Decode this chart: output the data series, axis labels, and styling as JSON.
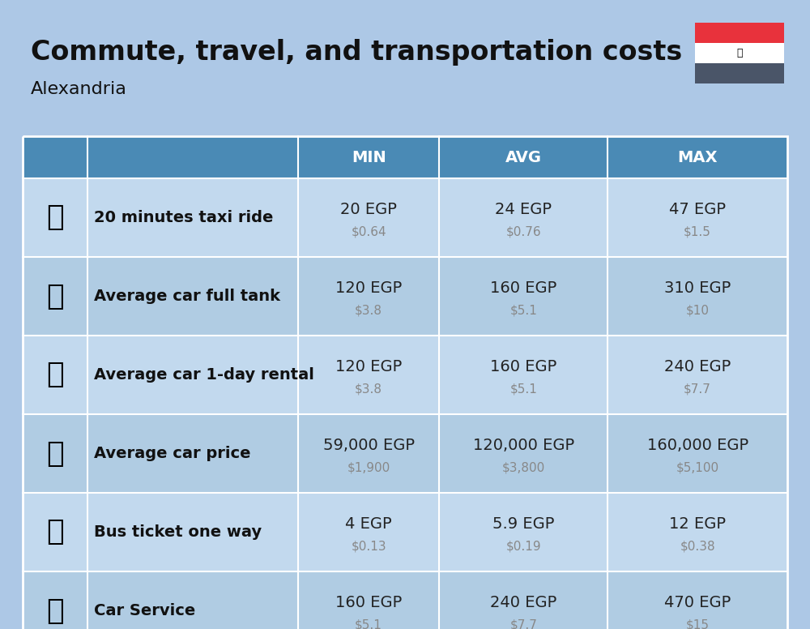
{
  "title": "Commute, travel, and transportation costs",
  "subtitle": "Alexandria",
  "bg_color": "#adc8e6",
  "header_bg": "#4a8ab5",
  "header_text": "#ffffff",
  "cell_text": "#222222",
  "cell_sub": "#888888",
  "label_bold": "#111111",
  "row_colors": [
    "#c2d9ee",
    "#b0cce3"
  ],
  "sep_color": "#ffffff",
  "flag_red": "#e8323c",
  "flag_white": "#ffffff",
  "flag_dark": "#4a5568",
  "title_fontsize": 24,
  "subtitle_fontsize": 16,
  "header_fontsize": 14,
  "label_fontsize": 14,
  "cell_fontsize": 14,
  "cell_sub_fontsize": 11,
  "rows": [
    {
      "label": "20 minutes taxi ride",
      "min_egp": "20 EGP",
      "min_usd": "$0.64",
      "avg_egp": "24 EGP",
      "avg_usd": "$0.76",
      "max_egp": "47 EGP",
      "max_usd": "$1.5",
      "emoji": "🚕"
    },
    {
      "label": "Average car full tank",
      "min_egp": "120 EGP",
      "min_usd": "$3.8",
      "avg_egp": "160 EGP",
      "avg_usd": "$5.1",
      "max_egp": "310 EGP",
      "max_usd": "$10",
      "emoji": "⛽"
    },
    {
      "label": "Average car 1-day rental",
      "min_egp": "120 EGP",
      "min_usd": "$3.8",
      "avg_egp": "160 EGP",
      "avg_usd": "$5.1",
      "max_egp": "240 EGP",
      "max_usd": "$7.7",
      "emoji": "🚙"
    },
    {
      "label": "Average car price",
      "min_egp": "59,000 EGP",
      "min_usd": "$1,900",
      "avg_egp": "120,000 EGP",
      "avg_usd": "$3,800",
      "max_egp": "160,000 EGP",
      "max_usd": "$5,100",
      "emoji": "🚗"
    },
    {
      "label": "Bus ticket one way",
      "min_egp": "4 EGP",
      "min_usd": "$0.13",
      "avg_egp": "5.9 EGP",
      "avg_usd": "$0.19",
      "max_egp": "12 EGP",
      "max_usd": "$0.38",
      "emoji": "🚌"
    },
    {
      "label": "Car Service",
      "min_egp": "160 EGP",
      "min_usd": "$5.1",
      "avg_egp": "240 EGP",
      "avg_usd": "$7.7",
      "max_egp": "470 EGP",
      "max_usd": "$15",
      "emoji": "🚗"
    }
  ]
}
